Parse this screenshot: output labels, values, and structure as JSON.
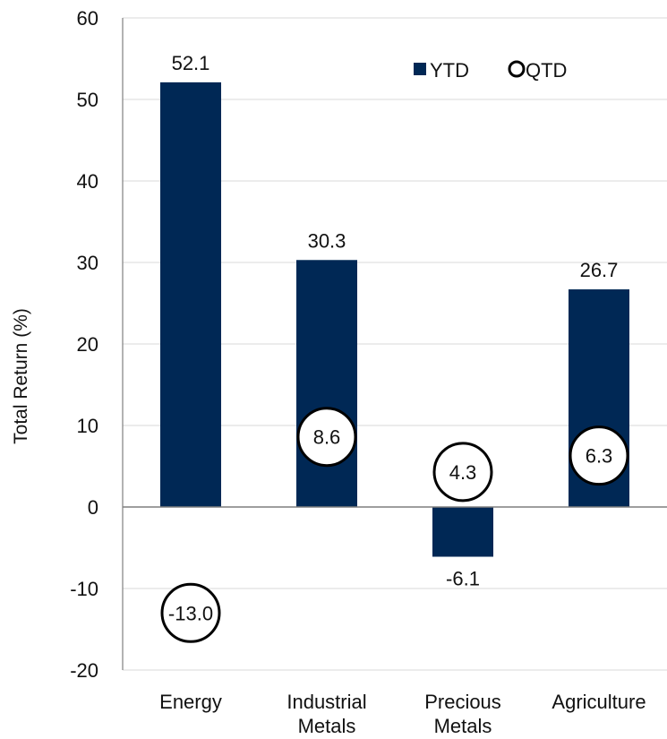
{
  "chart_data": {
    "type": "bar",
    "title": "",
    "xlabel": "",
    "ylabel": "Total Return (%)",
    "ylim": [
      -20,
      60
    ],
    "yticks": [
      60,
      50,
      40,
      30,
      20,
      10,
      0,
      -10,
      -20
    ],
    "categories": [
      [
        "Energy"
      ],
      [
        "Industrial",
        "Metals"
      ],
      [
        "Precious",
        "Metals"
      ],
      [
        "Agriculture"
      ]
    ],
    "grid": true,
    "legend_position": "top-right",
    "series": [
      {
        "name": "YTD",
        "marker": "bar",
        "color": "#002855",
        "values": [
          52.1,
          30.3,
          -6.1,
          26.7
        ],
        "labels": [
          "52.1",
          "30.3",
          "-6.1",
          "26.7"
        ]
      },
      {
        "name": "QTD",
        "marker": "circle",
        "color": "#000000",
        "values": [
          -13.0,
          8.6,
          4.3,
          6.3
        ],
        "labels": [
          "-13.0",
          "8.6",
          "4.3",
          "6.3"
        ]
      }
    ]
  }
}
